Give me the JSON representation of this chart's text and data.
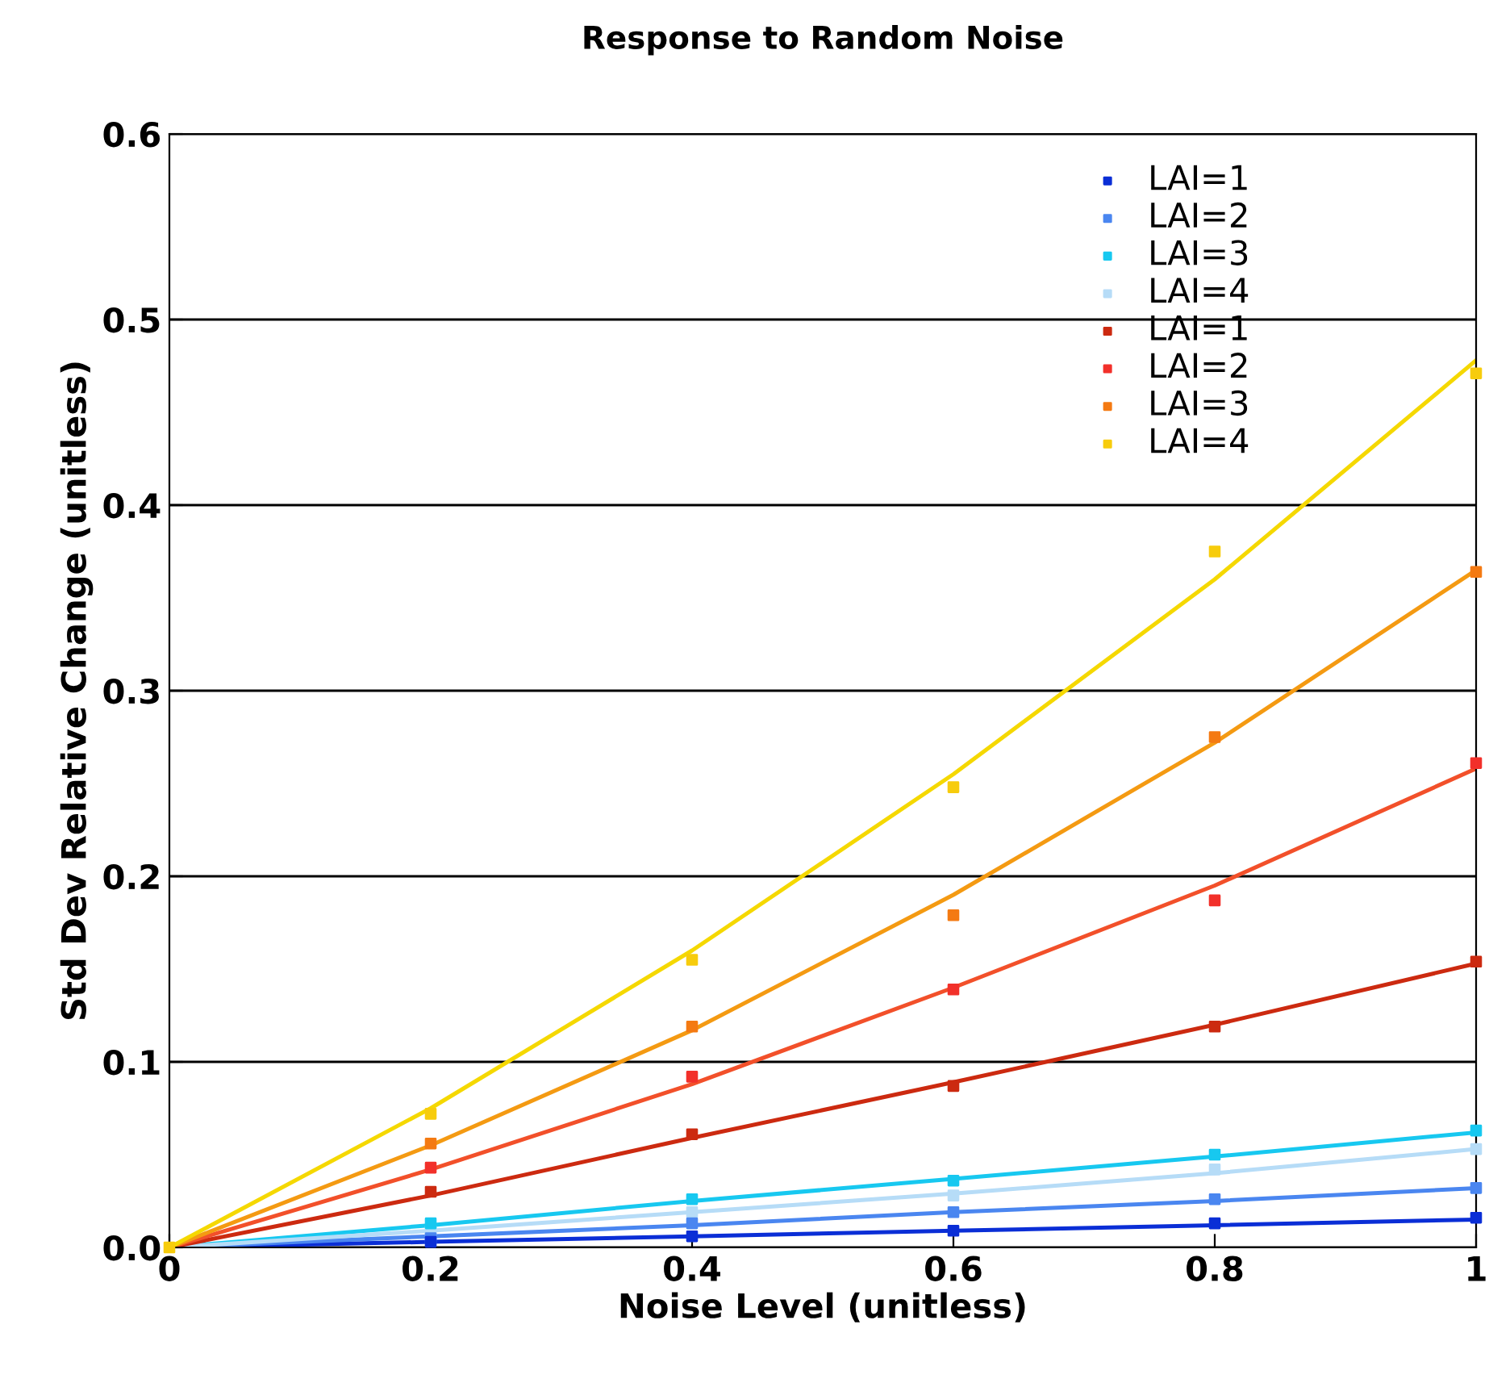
{
  "chart_data": {
    "type": "scatter",
    "title": "Response to Random Noise",
    "xlabel": "Noise Level (unitless)",
    "ylabel": "Std Dev Relative Change (unitless)",
    "x": [
      0,
      0.2,
      0.4,
      0.6,
      0.8,
      1
    ],
    "series": [
      {
        "name": "LAI=1",
        "color": "#0a2ed6",
        "values": [
          null,
          0.003,
          0.006,
          0.009,
          0.013,
          0.016
        ]
      },
      {
        "name": "LAI=2",
        "color": "#4a86f0",
        "values": [
          null,
          0.005,
          0.013,
          0.019,
          0.026,
          0.032
        ]
      },
      {
        "name": "LAI=3",
        "color": "#17c8f0",
        "values": [
          null,
          0.013,
          0.026,
          0.036,
          0.05,
          0.063
        ]
      },
      {
        "name": "LAI=4",
        "color": "#b6dcf7",
        "values": [
          null,
          0.009,
          0.019,
          0.028,
          0.042,
          0.053
        ]
      },
      {
        "name": "LAI=1",
        "color": "#cc2a10",
        "values": [
          null,
          0.03,
          0.061,
          0.087,
          0.119,
          0.154
        ]
      },
      {
        "name": "LAI=2",
        "color": "#f2302a",
        "values": [
          null,
          0.043,
          0.092,
          0.139,
          0.187,
          0.261
        ]
      },
      {
        "name": "LAI=3",
        "color": "#f47a12",
        "values": [
          null,
          0.056,
          0.119,
          0.179,
          0.275,
          0.364
        ]
      },
      {
        "name": "LAI=4",
        "color": "#f7cc0c",
        "values": [
          0,
          0.072,
          0.155,
          0.248,
          0.375,
          0.471
        ]
      },
      {
        "type": "line",
        "marker": "none",
        "color": "#0a2ed6",
        "values": [
          0,
          0.003,
          0.006,
          0.009,
          0.012,
          0.015
        ]
      },
      {
        "type": "line",
        "marker": "none",
        "color": "#4a86f0",
        "values": [
          0,
          0.006,
          0.012,
          0.019,
          0.025,
          0.032
        ]
      },
      {
        "type": "line",
        "marker": "none",
        "color": "#17c8f0",
        "values": [
          0,
          0.012,
          0.025,
          0.037,
          0.049,
          0.062
        ]
      },
      {
        "type": "line",
        "marker": "none",
        "color": "#b6dcf7",
        "values": [
          0,
          0.009,
          0.019,
          0.029,
          0.04,
          0.053
        ]
      },
      {
        "type": "line",
        "marker": "none",
        "color": "#cc2a10",
        "values": [
          0,
          0.028,
          0.059,
          0.089,
          0.12,
          0.153
        ]
      },
      {
        "type": "line",
        "marker": "none",
        "color": "#f2502a",
        "values": [
          0,
          0.042,
          0.088,
          0.14,
          0.195,
          0.258
        ]
      },
      {
        "type": "line",
        "marker": "none",
        "color": "#f49a12",
        "values": [
          0,
          0.055,
          0.117,
          0.19,
          0.272,
          0.365
        ]
      },
      {
        "type": "line",
        "marker": "none",
        "color": "#f5d800",
        "values": [
          0,
          0.075,
          0.16,
          0.255,
          0.36,
          0.478
        ]
      }
    ],
    "xlim": [
      0,
      1
    ],
    "xticks": [
      0,
      0.2,
      0.4,
      0.6,
      0.8,
      1
    ],
    "ylim": [
      0,
      0.6
    ],
    "yticks": [
      {
        "value": 0,
        "label": "0.0"
      },
      0.1,
      0.2,
      0.3,
      0.4,
      0.5,
      0.6
    ],
    "grid": "y",
    "legend": "top right",
    "marker": "square"
  }
}
